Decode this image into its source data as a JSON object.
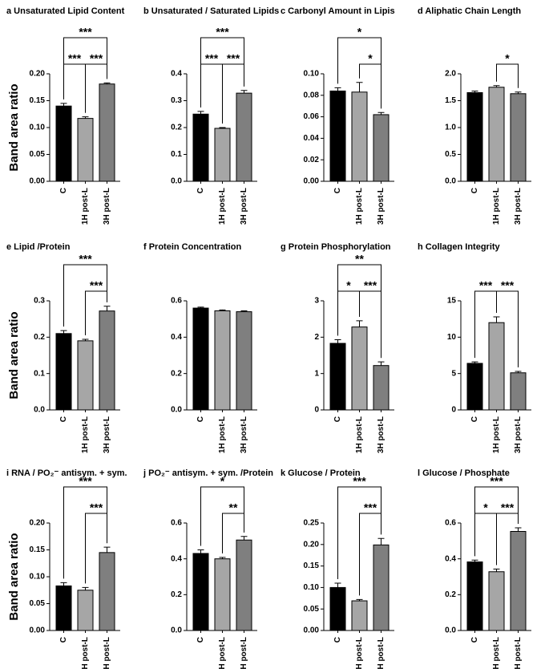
{
  "chart_data": [
    {
      "type": "bar",
      "title": "a Unsaturated Lipid  Content",
      "ylabel": "Band area ratio",
      "categories": [
        "C",
        "1H post-L",
        "3H post-L"
      ],
      "values": [
        0.14,
        0.117,
        0.181
      ],
      "errors": [
        0.005,
        0.003,
        0.002
      ],
      "colors": [
        "#000000",
        "#a6a6a6",
        "#7f7f7f"
      ],
      "ylim": [
        0,
        0.2
      ],
      "yticks": [
        {
          "value": 0,
          "label": "0.00"
        },
        {
          "value": 0.05,
          "label": "0.05"
        },
        {
          "value": 0.1,
          "label": "0.10"
        },
        {
          "value": 0.15,
          "label": "0.15"
        },
        {
          "value": 0.2,
          "label": "0.20"
        }
      ],
      "brackets": [
        {
          "between": [
            "C",
            "1H post-L"
          ],
          "label": "***"
        },
        {
          "between": [
            "1H post-L",
            "3H post-L"
          ],
          "label": "***"
        },
        {
          "between": [
            "C",
            "3H post-L"
          ],
          "label": "***"
        }
      ]
    },
    {
      "type": "bar",
      "title": "b Unsaturated / Saturated Lipids",
      "categories": [
        "C",
        "1H post-L",
        "3H post-L"
      ],
      "values": [
        0.25,
        0.197,
        0.328
      ],
      "errors": [
        0.01,
        0.003,
        0.01
      ],
      "colors": [
        "#000000",
        "#a6a6a6",
        "#7f7f7f"
      ],
      "ylim": [
        0,
        0.4
      ],
      "yticks": [
        {
          "value": 0,
          "label": "0.0"
        },
        {
          "value": 0.1,
          "label": "0.1"
        },
        {
          "value": 0.2,
          "label": "0.2"
        },
        {
          "value": 0.3,
          "label": "0.3"
        },
        {
          "value": 0.4,
          "label": "0.4"
        }
      ],
      "brackets": [
        {
          "between": [
            "C",
            "1H post-L"
          ],
          "label": "***"
        },
        {
          "between": [
            "1H post-L",
            "3H post-L"
          ],
          "label": "***"
        },
        {
          "between": [
            "C",
            "3H post-L"
          ],
          "label": "***"
        }
      ]
    },
    {
      "type": "bar",
      "title": "c Carbonyl Amount in Lipis",
      "categories": [
        "C",
        "1H post-L",
        "3H post-L"
      ],
      "values": [
        0.084,
        0.083,
        0.062
      ],
      "errors": [
        0.003,
        0.009,
        0.002
      ],
      "colors": [
        "#000000",
        "#a6a6a6",
        "#7f7f7f"
      ],
      "ylim": [
        0,
        0.1
      ],
      "yticks": [
        {
          "value": 0,
          "label": "0.00"
        },
        {
          "value": 0.02,
          "label": "0.02"
        },
        {
          "value": 0.04,
          "label": "0.04"
        },
        {
          "value": 0.06,
          "label": "0.06"
        },
        {
          "value": 0.08,
          "label": "0.08"
        },
        {
          "value": 0.1,
          "label": "0.10"
        }
      ],
      "brackets": [
        {
          "between": [
            "1H post-L",
            "3H post-L"
          ],
          "label": "*"
        },
        {
          "between": [
            "C",
            "3H post-L"
          ],
          "label": "*"
        }
      ]
    },
    {
      "type": "bar",
      "title": "d Aliphatic Chain  Length",
      "categories": [
        "C",
        "1H post-L",
        "3H post-L"
      ],
      "values": [
        1.65,
        1.75,
        1.63
      ],
      "errors": [
        0.03,
        0.03,
        0.03
      ],
      "colors": [
        "#000000",
        "#a6a6a6",
        "#7f7f7f"
      ],
      "ylim": [
        0,
        2.0
      ],
      "yticks": [
        {
          "value": 0,
          "label": "0.0"
        },
        {
          "value": 0.5,
          "label": "0.5"
        },
        {
          "value": 1.0,
          "label": "1.0"
        },
        {
          "value": 1.5,
          "label": "1.5"
        },
        {
          "value": 2.0,
          "label": "2.0"
        }
      ],
      "brackets": [
        {
          "between": [
            "1H post-L",
            "3H post-L"
          ],
          "label": "*"
        }
      ]
    },
    {
      "type": "bar",
      "title": "e Lipid /Protein",
      "ylabel": "Band area ratio",
      "categories": [
        "C",
        "1H post-L",
        "3H post-L"
      ],
      "values": [
        0.21,
        0.19,
        0.272
      ],
      "errors": [
        0.008,
        0.004,
        0.013
      ],
      "colors": [
        "#000000",
        "#a6a6a6",
        "#7f7f7f"
      ],
      "ylim": [
        0,
        0.3
      ],
      "yticks": [
        {
          "value": 0,
          "label": "0.0"
        },
        {
          "value": 0.1,
          "label": "0.1"
        },
        {
          "value": 0.2,
          "label": "0.2"
        },
        {
          "value": 0.3,
          "label": "0.3"
        }
      ],
      "brackets": [
        {
          "between": [
            "1H post-L",
            "3H post-L"
          ],
          "label": "***"
        },
        {
          "between": [
            "C",
            "3H post-L"
          ],
          "label": "***"
        }
      ]
    },
    {
      "type": "bar",
      "title": "f Protein Concentration",
      "categories": [
        "C",
        "1H post-L",
        "3H post-L"
      ],
      "values": [
        0.56,
        0.545,
        0.54
      ],
      "errors": [
        0.005,
        0.005,
        0.005
      ],
      "colors": [
        "#000000",
        "#a6a6a6",
        "#7f7f7f"
      ],
      "ylim": [
        0,
        0.6
      ],
      "yticks": [
        {
          "value": 0,
          "label": "0.0"
        },
        {
          "value": 0.2,
          "label": "0.2"
        },
        {
          "value": 0.4,
          "label": "0.4"
        },
        {
          "value": 0.6,
          "label": "0.6"
        }
      ],
      "brackets": []
    },
    {
      "type": "bar",
      "title": "g Protein Phosphorylation",
      "categories": [
        "C",
        "1H post-L",
        "3H post-L"
      ],
      "values": [
        1.83,
        2.28,
        1.22
      ],
      "errors": [
        0.1,
        0.17,
        0.1
      ],
      "colors": [
        "#000000",
        "#a6a6a6",
        "#7f7f7f"
      ],
      "ylim": [
        0,
        3
      ],
      "yticks": [
        0,
        1,
        2,
        3
      ],
      "brackets": [
        {
          "between": [
            "C",
            "1H post-L"
          ],
          "label": "*"
        },
        {
          "between": [
            "1H post-L",
            "3H post-L"
          ],
          "label": "***"
        },
        {
          "between": [
            "C",
            "3H post-L"
          ],
          "label": "**"
        }
      ]
    },
    {
      "type": "bar",
      "title": "h Collagen Integrity",
      "categories": [
        "C",
        "1H post-L",
        "3H post-L"
      ],
      "values": [
        6.4,
        12.0,
        5.1
      ],
      "errors": [
        0.2,
        0.8,
        0.2
      ],
      "colors": [
        "#000000",
        "#a6a6a6",
        "#7f7f7f"
      ],
      "ylim": [
        0,
        15
      ],
      "yticks": [
        0,
        5,
        10,
        15
      ],
      "brackets": [
        {
          "between": [
            "C",
            "1H post-L"
          ],
          "label": "***"
        },
        {
          "between": [
            "1H post-L",
            "3H post-L"
          ],
          "label": "***"
        }
      ]
    },
    {
      "type": "bar",
      "title": "i RNA / PO₂⁻ antisym. + sym.",
      "ylabel": "Band area ratio",
      "categories": [
        "C",
        "1H post-L",
        "3H post-L"
      ],
      "values": [
        0.083,
        0.075,
        0.145
      ],
      "errors": [
        0.006,
        0.005,
        0.01
      ],
      "colors": [
        "#000000",
        "#a6a6a6",
        "#7f7f7f"
      ],
      "ylim": [
        0,
        0.2
      ],
      "yticks": [
        {
          "value": 0,
          "label": "0.00"
        },
        {
          "value": 0.05,
          "label": "0.05"
        },
        {
          "value": 0.1,
          "label": "0.10"
        },
        {
          "value": 0.15,
          "label": "0.15"
        },
        {
          "value": 0.2,
          "label": "0.20"
        }
      ],
      "brackets": [
        {
          "between": [
            "1H post-L",
            "3H post-L"
          ],
          "label": "***"
        },
        {
          "between": [
            "C",
            "3H post-L"
          ],
          "label": "***"
        }
      ]
    },
    {
      "type": "bar",
      "title": "j PO₂⁻ antisym. + sym. /Protein",
      "categories": [
        "C",
        "1H post-L",
        "3H post-L"
      ],
      "values": [
        0.43,
        0.4,
        0.505
      ],
      "errors": [
        0.02,
        0.008,
        0.02
      ],
      "colors": [
        "#000000",
        "#a6a6a6",
        "#7f7f7f"
      ],
      "ylim": [
        0,
        0.6
      ],
      "yticks": [
        {
          "value": 0,
          "label": "0.0"
        },
        {
          "value": 0.2,
          "label": "0.2"
        },
        {
          "value": 0.4,
          "label": "0.4"
        },
        {
          "value": 0.6,
          "label": "0.6"
        }
      ],
      "brackets": [
        {
          "between": [
            "1H post-L",
            "3H post-L"
          ],
          "label": "**"
        },
        {
          "between": [
            "C",
            "3H post-L"
          ],
          "label": "*"
        }
      ]
    },
    {
      "type": "bar",
      "title": "k Glucose / Protein",
      "categories": [
        "C",
        "1H post-L",
        "3H post-L"
      ],
      "values": [
        0.1,
        0.069,
        0.199
      ],
      "errors": [
        0.01,
        0.003,
        0.015
      ],
      "colors": [
        "#000000",
        "#a6a6a6",
        "#7f7f7f"
      ],
      "ylim": [
        0,
        0.25
      ],
      "yticks": [
        {
          "value": 0,
          "label": "0.00"
        },
        {
          "value": 0.05,
          "label": "0.05"
        },
        {
          "value": 0.1,
          "label": "0.10"
        },
        {
          "value": 0.15,
          "label": "0.15"
        },
        {
          "value": 0.2,
          "label": "0.20"
        },
        {
          "value": 0.25,
          "label": "0.25"
        }
      ],
      "brackets": [
        {
          "between": [
            "1H post-L",
            "3H post-L"
          ],
          "label": "***"
        },
        {
          "between": [
            "C",
            "3H post-L"
          ],
          "label": "***"
        }
      ]
    },
    {
      "type": "bar",
      "title": "l Glucose / Phosphate",
      "categories": [
        "C",
        "1H post-L",
        "3H post-L"
      ],
      "values": [
        0.383,
        0.328,
        0.553
      ],
      "errors": [
        0.01,
        0.015,
        0.02
      ],
      "colors": [
        "#000000",
        "#a6a6a6",
        "#7f7f7f"
      ],
      "ylim": [
        0,
        0.6
      ],
      "yticks": [
        {
          "value": 0,
          "label": "0.0"
        },
        {
          "value": 0.2,
          "label": "0.2"
        },
        {
          "value": 0.4,
          "label": "0.4"
        },
        {
          "value": 0.6,
          "label": "0.6"
        }
      ],
      "brackets": [
        {
          "between": [
            "C",
            "1H post-L"
          ],
          "label": "*"
        },
        {
          "between": [
            "1H post-L",
            "3H post-L"
          ],
          "label": "***"
        },
        {
          "between": [
            "C",
            "3H post-L"
          ],
          "label": "***"
        }
      ]
    }
  ]
}
